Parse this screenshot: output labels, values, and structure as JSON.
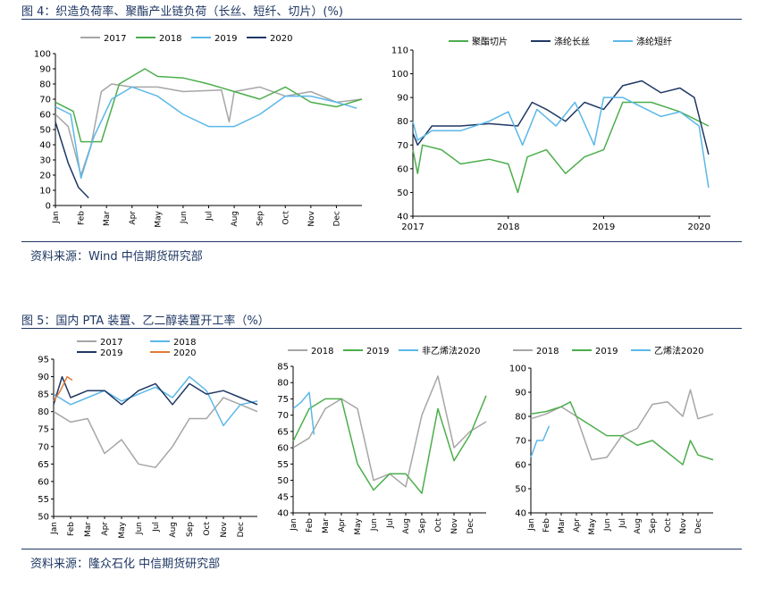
{
  "figure4": {
    "title": "图 4：织造负荷率、聚酯产业链负荷（长丝、短纤、切片）(%)",
    "source": "资料来源：Wind 中信期货研究部"
  },
  "figure5": {
    "title": "图 5：国内 PTA 装置、乙二醇装置开工率（%）",
    "source": "资料来源：隆众石化  中信期货研究部"
  },
  "colors": {
    "gray": "#a6a6a6",
    "green": "#4cae4c",
    "lightblue": "#5bb8e8",
    "navy": "#1f3864",
    "orange": "#e07b39"
  },
  "chart_data": [
    {
      "id": "c1",
      "type": "line",
      "title": "织造负荷率",
      "xaxis": "months",
      "categories": [
        "Jan",
        "Feb",
        "Mar",
        "Apr",
        "May",
        "Jun",
        "Jul",
        "Aug",
        "Sep",
        "Oct",
        "Nov",
        "Dec"
      ],
      "ylim": [
        0,
        100
      ],
      "yticks": [
        0,
        10,
        20,
        30,
        40,
        50,
        60,
        70,
        80,
        90,
        100
      ],
      "legend_rows": [
        [
          "2017",
          "2018",
          "2019",
          "2020"
        ]
      ],
      "series": [
        {
          "name": "2017",
          "color": "#a6a6a6",
          "points": [
            [
              0,
              60
            ],
            [
              0.5,
              52
            ],
            [
              1,
              20
            ],
            [
              1.4,
              40
            ],
            [
              1.8,
              75
            ],
            [
              2.2,
              80
            ],
            [
              3,
              78
            ],
            [
              4,
              78
            ],
            [
              5,
              75
            ],
            [
              6.5,
              76
            ],
            [
              6.8,
              55
            ],
            [
              7,
              75
            ],
            [
              8,
              78
            ],
            [
              9,
              72
            ],
            [
              10,
              75
            ],
            [
              11,
              68
            ],
            [
              12,
              70
            ]
          ]
        },
        {
          "name": "2018",
          "color": "#4cae4c",
          "points": [
            [
              0,
              68
            ],
            [
              0.7,
              62
            ],
            [
              1,
              42
            ],
            [
              1.8,
              42
            ],
            [
              2.5,
              80
            ],
            [
              3.5,
              90
            ],
            [
              4,
              85
            ],
            [
              5,
              84
            ],
            [
              6,
              80
            ],
            [
              7,
              75
            ],
            [
              8,
              70
            ],
            [
              9,
              78
            ],
            [
              10,
              68
            ],
            [
              11,
              65
            ],
            [
              12,
              70
            ]
          ]
        },
        {
          "name": "2019",
          "color": "#5bb8e8",
          "points": [
            [
              0,
              65
            ],
            [
              0.6,
              60
            ],
            [
              1,
              18
            ],
            [
              1.5,
              45
            ],
            [
              2.2,
              70
            ],
            [
              3,
              78
            ],
            [
              4,
              72
            ],
            [
              5,
              60
            ],
            [
              6,
              52
            ],
            [
              7,
              52
            ],
            [
              8,
              60
            ],
            [
              9,
              72
            ],
            [
              10,
              72
            ],
            [
              11,
              68
            ],
            [
              11.8,
              64
            ]
          ]
        },
        {
          "name": "2020",
          "color": "#1f3864",
          "points": [
            [
              0,
              55
            ],
            [
              0.5,
              28
            ],
            [
              0.9,
              12
            ],
            [
              1.3,
              5
            ]
          ]
        }
      ]
    },
    {
      "id": "c2",
      "type": "line",
      "title": "聚酯产业链负荷",
      "xaxis": "years",
      "categories": [
        "2017",
        "2018",
        "2019",
        "2020"
      ],
      "ylim": [
        40,
        110
      ],
      "yticks": [
        40,
        50,
        60,
        70,
        80,
        90,
        100,
        110
      ],
      "legend_rows": [
        [
          "聚酯切片",
          "涤纶长丝",
          "涤纶短纤"
        ]
      ],
      "series": [
        {
          "name": "聚酯切片",
          "color": "#4cae4c",
          "points": [
            [
              0,
              68
            ],
            [
              0.05,
              58
            ],
            [
              0.1,
              70
            ],
            [
              0.3,
              68
            ],
            [
              0.5,
              62
            ],
            [
              0.8,
              64
            ],
            [
              1.0,
              62
            ],
            [
              1.1,
              50
            ],
            [
              1.2,
              65
            ],
            [
              1.4,
              68
            ],
            [
              1.6,
              58
            ],
            [
              1.8,
              65
            ],
            [
              2.0,
              68
            ],
            [
              2.2,
              88
            ],
            [
              2.5,
              88
            ],
            [
              2.8,
              84
            ],
            [
              3.0,
              80
            ],
            [
              3.1,
              78
            ]
          ]
        },
        {
          "name": "涤纶长丝",
          "color": "#1f3864",
          "points": [
            [
              0,
              75
            ],
            [
              0.05,
              70
            ],
            [
              0.2,
              78
            ],
            [
              0.5,
              78
            ],
            [
              0.8,
              79
            ],
            [
              1.1,
              78
            ],
            [
              1.25,
              88
            ],
            [
              1.4,
              85
            ],
            [
              1.6,
              80
            ],
            [
              1.8,
              88
            ],
            [
              2.0,
              85
            ],
            [
              2.2,
              95
            ],
            [
              2.4,
              97
            ],
            [
              2.6,
              92
            ],
            [
              2.8,
              94
            ],
            [
              2.95,
              90
            ],
            [
              3.1,
              66
            ]
          ]
        },
        {
          "name": "涤纶短纤",
          "color": "#5bb8e8",
          "points": [
            [
              0,
              80
            ],
            [
              0.05,
              72
            ],
            [
              0.2,
              76
            ],
            [
              0.5,
              76
            ],
            [
              0.8,
              80
            ],
            [
              1.0,
              84
            ],
            [
              1.15,
              70
            ],
            [
              1.3,
              85
            ],
            [
              1.5,
              78
            ],
            [
              1.7,
              88
            ],
            [
              1.9,
              70
            ],
            [
              2.0,
              90
            ],
            [
              2.2,
              90
            ],
            [
              2.4,
              86
            ],
            [
              2.6,
              82
            ],
            [
              2.8,
              84
            ],
            [
              3.0,
              78
            ],
            [
              3.1,
              52
            ]
          ]
        }
      ]
    },
    {
      "id": "c3",
      "type": "line",
      "title": "PTA 装置开工率",
      "xaxis": "months",
      "categories": [
        "Jan",
        "Feb",
        "Mar",
        "Apr",
        "May",
        "Jun",
        "Jul",
        "Aug",
        "Sep",
        "Oct",
        "Nov",
        "Dec"
      ],
      "ylim": [
        50,
        95
      ],
      "yticks": [
        50,
        55,
        60,
        65,
        70,
        75,
        80,
        85,
        90,
        95
      ],
      "legend_rows": [
        [
          "2017",
          "2018"
        ],
        [
          "2019",
          "2020"
        ]
      ],
      "series": [
        {
          "name": "2017",
          "color": "#a6a6a6",
          "points": [
            [
              0,
              80
            ],
            [
              1,
              77
            ],
            [
              2,
              78
            ],
            [
              3,
              68
            ],
            [
              4,
              72
            ],
            [
              5,
              65
            ],
            [
              6,
              64
            ],
            [
              7,
              70
            ],
            [
              8,
              78
            ],
            [
              9,
              78
            ],
            [
              10,
              84
            ],
            [
              11,
              82
            ],
            [
              12,
              80
            ]
          ]
        },
        {
          "name": "2018",
          "color": "#5bb8e8",
          "points": [
            [
              0,
              85
            ],
            [
              1,
              82
            ],
            [
              2,
              84
            ],
            [
              3,
              86
            ],
            [
              4,
              83
            ],
            [
              5,
              85
            ],
            [
              6,
              87
            ],
            [
              7,
              84
            ],
            [
              8,
              90
            ],
            [
              9,
              86
            ],
            [
              10,
              76
            ],
            [
              11,
              82
            ],
            [
              12,
              83
            ]
          ]
        },
        {
          "name": "2019",
          "color": "#1f3864",
          "points": [
            [
              0,
              82
            ],
            [
              0.5,
              90
            ],
            [
              1,
              84
            ],
            [
              2,
              86
            ],
            [
              3,
              86
            ],
            [
              4,
              82
            ],
            [
              5,
              86
            ],
            [
              6,
              88
            ],
            [
              7,
              82
            ],
            [
              8,
              88
            ],
            [
              9,
              85
            ],
            [
              10,
              86
            ],
            [
              11,
              84
            ],
            [
              12,
              82
            ]
          ]
        },
        {
          "name": "2020",
          "color": "#e07b39",
          "points": [
            [
              0,
              83
            ],
            [
              0.4,
              86
            ],
            [
              0.8,
              90
            ],
            [
              1.1,
              89
            ]
          ]
        }
      ]
    },
    {
      "id": "c4",
      "type": "line",
      "title": "乙二醇装置开工率",
      "xaxis": "months",
      "categories": [
        "Jan",
        "Feb",
        "Mar",
        "Apr",
        "May",
        "Jun",
        "Jul",
        "Aug",
        "Sep",
        "Oct",
        "Nov",
        "Dec"
      ],
      "ylim": [
        40,
        85
      ],
      "yticks": [
        40,
        45,
        50,
        55,
        60,
        65,
        70,
        75,
        80,
        85
      ],
      "legend_rows": [
        [
          "2018",
          "2019",
          "非乙烯法2020"
        ]
      ],
      "series": [
        {
          "name": "2018",
          "color": "#a6a6a6",
          "points": [
            [
              0,
              60
            ],
            [
              1,
              63
            ],
            [
              2,
              72
            ],
            [
              3,
              75
            ],
            [
              4,
              72
            ],
            [
              5,
              50
            ],
            [
              6,
              52
            ],
            [
              7,
              48
            ],
            [
              8,
              70
            ],
            [
              9,
              82
            ],
            [
              10,
              60
            ],
            [
              11,
              65
            ],
            [
              12,
              68
            ]
          ]
        },
        {
          "name": "2019",
          "color": "#4cae4c",
          "points": [
            [
              0,
              62
            ],
            [
              1,
              72
            ],
            [
              2,
              75
            ],
            [
              3,
              75
            ],
            [
              4,
              55
            ],
            [
              5,
              47
            ],
            [
              6,
              52
            ],
            [
              7,
              52
            ],
            [
              8,
              46
            ],
            [
              9,
              72
            ],
            [
              10,
              56
            ],
            [
              11,
              64
            ],
            [
              12,
              76
            ]
          ]
        },
        {
          "name": "非乙烯法2020",
          "color": "#5bb8e8",
          "points": [
            [
              0,
              72
            ],
            [
              0.5,
              74
            ],
            [
              1,
              77
            ],
            [
              1.3,
              64
            ]
          ]
        }
      ]
    },
    {
      "id": "c5",
      "type": "line",
      "title": "乙二醇装置开工率",
      "xaxis": "months",
      "categories": [
        "Jan",
        "Feb",
        "Mar",
        "Apr",
        "May",
        "Jun",
        "Jul",
        "Aug",
        "Sep",
        "Oct",
        "Nov",
        "Dec"
      ],
      "ylim": [
        40,
        100
      ],
      "yticks": [
        40,
        50,
        60,
        70,
        80,
        90,
        100
      ],
      "legend_rows": [
        [
          "2018",
          "2019",
          "乙烯法2020"
        ]
      ],
      "series": [
        {
          "name": "2018",
          "color": "#a6a6a6",
          "points": [
            [
              0,
              79
            ],
            [
              1,
              81
            ],
            [
              2,
              84
            ],
            [
              3,
              80
            ],
            [
              4,
              62
            ],
            [
              5,
              63
            ],
            [
              6,
              72
            ],
            [
              7,
              75
            ],
            [
              8,
              85
            ],
            [
              9,
              86
            ],
            [
              10,
              80
            ],
            [
              10.5,
              91
            ],
            [
              11,
              79
            ],
            [
              12,
              81
            ]
          ]
        },
        {
          "name": "2019",
          "color": "#4cae4c",
          "points": [
            [
              0,
              81
            ],
            [
              1,
              82
            ],
            [
              2,
              84
            ],
            [
              2.6,
              86
            ],
            [
              3,
              80
            ],
            [
              4,
              76
            ],
            [
              5,
              72
            ],
            [
              6,
              72
            ],
            [
              7,
              68
            ],
            [
              8,
              70
            ],
            [
              9,
              65
            ],
            [
              10,
              60
            ],
            [
              10.5,
              70
            ],
            [
              11,
              64
            ],
            [
              12,
              62
            ]
          ]
        },
        {
          "name": "乙烯法2020",
          "color": "#5bb8e8",
          "points": [
            [
              0,
              63
            ],
            [
              0.4,
              70
            ],
            [
              0.8,
              70
            ],
            [
              1.2,
              76
            ]
          ]
        }
      ]
    }
  ]
}
